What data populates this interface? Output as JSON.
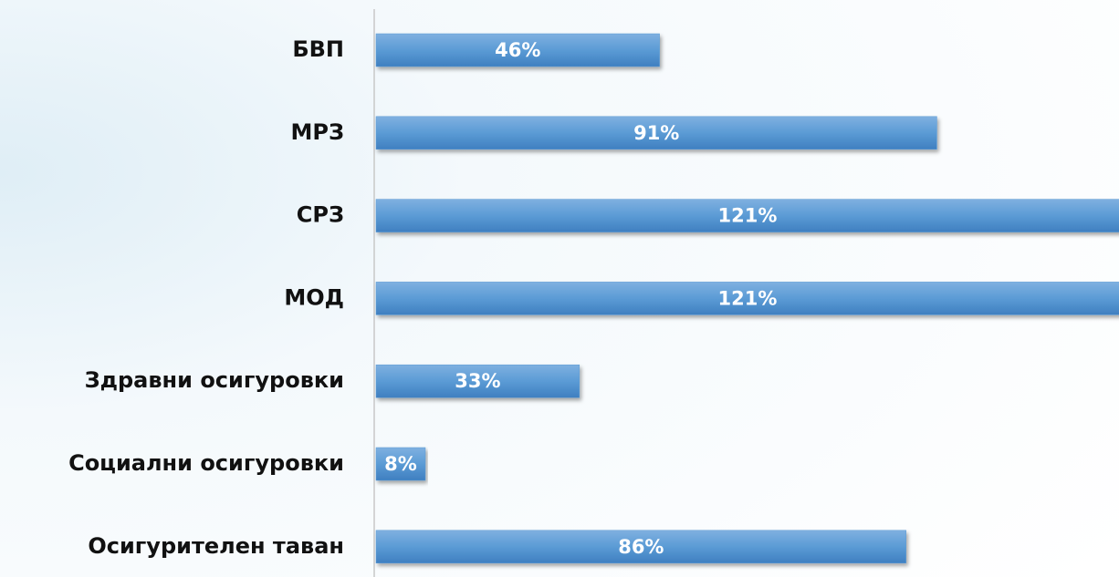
{
  "chart_data": {
    "type": "bar",
    "orientation": "horizontal",
    "categories": [
      "БВП",
      "МРЗ",
      "СРЗ",
      "МОД",
      "Здравни осигуровки",
      "Социални осигуровки",
      "Осигурителен таван"
    ],
    "values": [
      46,
      91,
      121,
      121,
      33,
      8,
      86
    ],
    "value_labels": [
      "46%",
      "91%",
      "121%",
      "121%",
      "33%",
      "8%",
      "86%"
    ],
    "color": "#5b9bd5"
  }
}
